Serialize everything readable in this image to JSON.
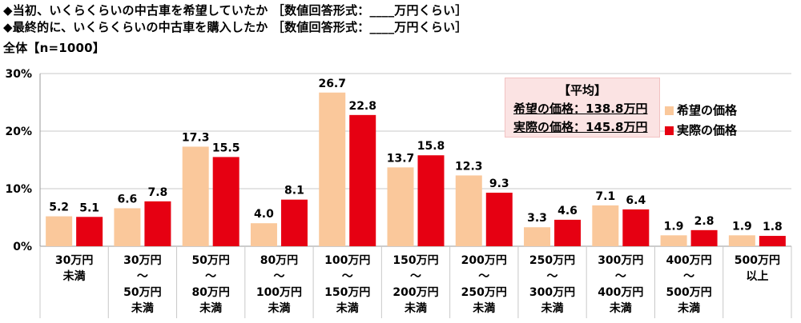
{
  "header": {
    "q1": "◆当初、いくらくらいの中古車を希望していたか ［数値回答形式：____万円くらい］",
    "q2": "◆最終的に、いくらくらいの中古車を購入したか ［数値回答形式：____万円くらい］",
    "base": "全体【n=1000】"
  },
  "average_box": {
    "title": "【平均】",
    "line1": "希望の価格：138.8万円",
    "line2": "実際の価格：145.8万円"
  },
  "colors": {
    "desired": "#fac89b",
    "actual": "#e60012",
    "grid": "#c8c8c8",
    "axis": "#999999"
  },
  "chart_data": {
    "type": "bar",
    "title": "",
    "xlabel": "",
    "ylabel": "",
    "ylim": [
      0,
      30
    ],
    "yticks": [
      "0%",
      "10%",
      "20%",
      "30%"
    ],
    "grid": true,
    "legend_position": "right",
    "categories": [
      [
        "30万円",
        "未満"
      ],
      [
        "30万円",
        "～",
        "50万円",
        "未満"
      ],
      [
        "50万円",
        "～",
        "80万円",
        "未満"
      ],
      [
        "80万円",
        "～",
        "100万円",
        "未満"
      ],
      [
        "100万円",
        "～",
        "150万円",
        "未満"
      ],
      [
        "150万円",
        "～",
        "200万円",
        "未満"
      ],
      [
        "200万円",
        "～",
        "250万円",
        "未満"
      ],
      [
        "250万円",
        "～",
        "300万円",
        "未満"
      ],
      [
        "300万円",
        "～",
        "400万円",
        "未満"
      ],
      [
        "400万円",
        "～",
        "500万円",
        "未満"
      ],
      [
        "500万円",
        "以上"
      ]
    ],
    "series": [
      {
        "name": "希望の価格",
        "values": [
          5.2,
          6.6,
          17.3,
          4.0,
          26.7,
          13.7,
          12.3,
          3.3,
          7.1,
          1.9,
          1.9
        ]
      },
      {
        "name": "実際の価格",
        "values": [
          5.1,
          7.8,
          15.5,
          8.1,
          22.8,
          15.8,
          9.3,
          4.6,
          6.4,
          2.8,
          1.8
        ]
      }
    ]
  }
}
